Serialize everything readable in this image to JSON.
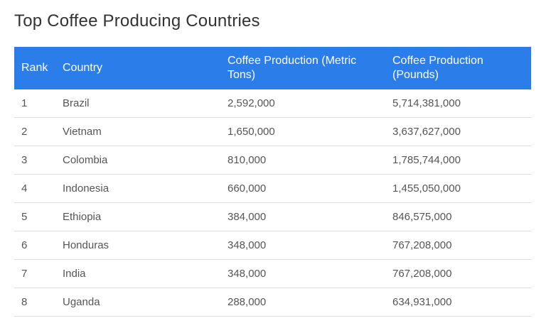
{
  "page": {
    "title": "Top Coffee Producing Countries"
  },
  "table": {
    "headers": [
      "Rank",
      "Country",
      "Coffee Production (Metric Tons)",
      "Coffee Production (Pounds)"
    ],
    "rows": [
      [
        "1",
        "Brazil",
        "2,592,000",
        "5,714,381,000"
      ],
      [
        "2",
        "Vietnam",
        "1,650,000",
        "3,637,627,000"
      ],
      [
        "3",
        "Colombia",
        "810,000",
        "1,785,744,000"
      ],
      [
        "4",
        "Indonesia",
        "660,000",
        "1,455,050,000"
      ],
      [
        "5",
        "Ethiopia",
        "384,000",
        "846,575,000"
      ],
      [
        "6",
        "Honduras",
        "348,000",
        "767,208,000"
      ],
      [
        "7",
        "India",
        "348,000",
        "767,208,000"
      ],
      [
        "8",
        "Uganda",
        "288,000",
        "634,931,000"
      ]
    ]
  },
  "colors": {
    "header_background": "#2b7de9",
    "header_text": "#ffffff",
    "title_text": "#333333",
    "row_border": "#dddddd"
  }
}
